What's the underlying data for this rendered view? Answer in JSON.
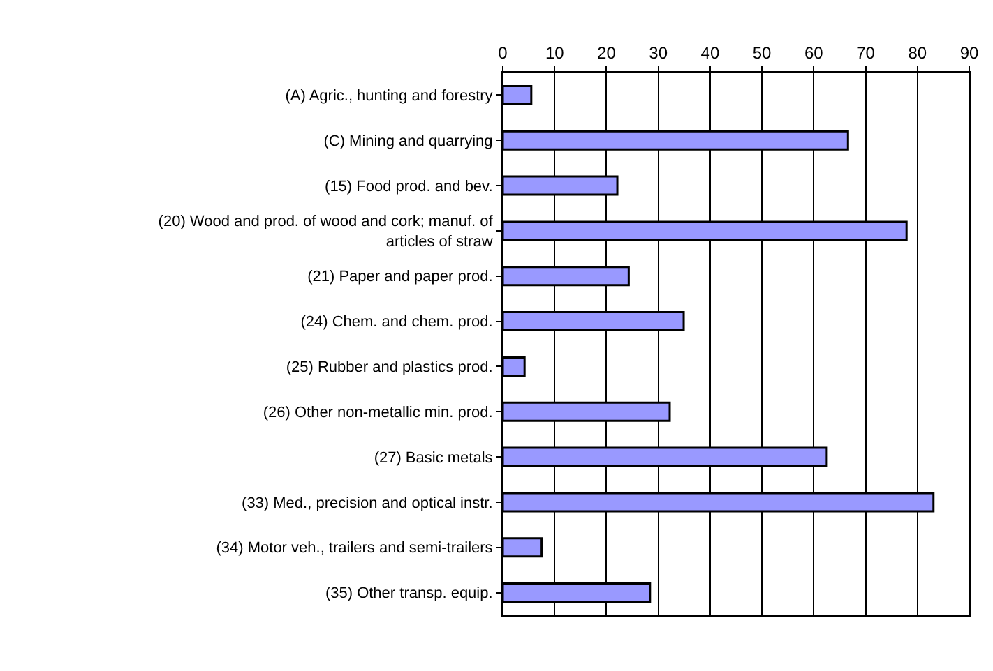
{
  "chart_data": {
    "type": "bar",
    "orientation": "horizontal",
    "categories": [
      "(A) Agric., hunting and forestry",
      "(C) Mining and quarrying",
      "(15) Food prod. and bev.",
      "(20) Wood and prod. of wood and cork; manuf. of articles of straw",
      "(21) Paper and paper prod.",
      "(24) Chem. and chem. prod.",
      "(25) Rubber and plastics prod.",
      "(26) Other non-metallic min. prod.",
      "(27) Basic metals",
      "(33) Med., precision and optical instr.",
      "(34) Motor veh., trailers and semi-trailers",
      "(35) Other transp. equip."
    ],
    "values": [
      5.5,
      66.6,
      22.1,
      77.9,
      24.3,
      34.9,
      4.2,
      32.2,
      62.5,
      83.1,
      7.5,
      28.4
    ],
    "color": "#9999ff",
    "xlim": [
      0,
      90
    ],
    "xticks": [
      0,
      10,
      20,
      30,
      40,
      50,
      60,
      70,
      80,
      90
    ],
    "grid": "x"
  }
}
